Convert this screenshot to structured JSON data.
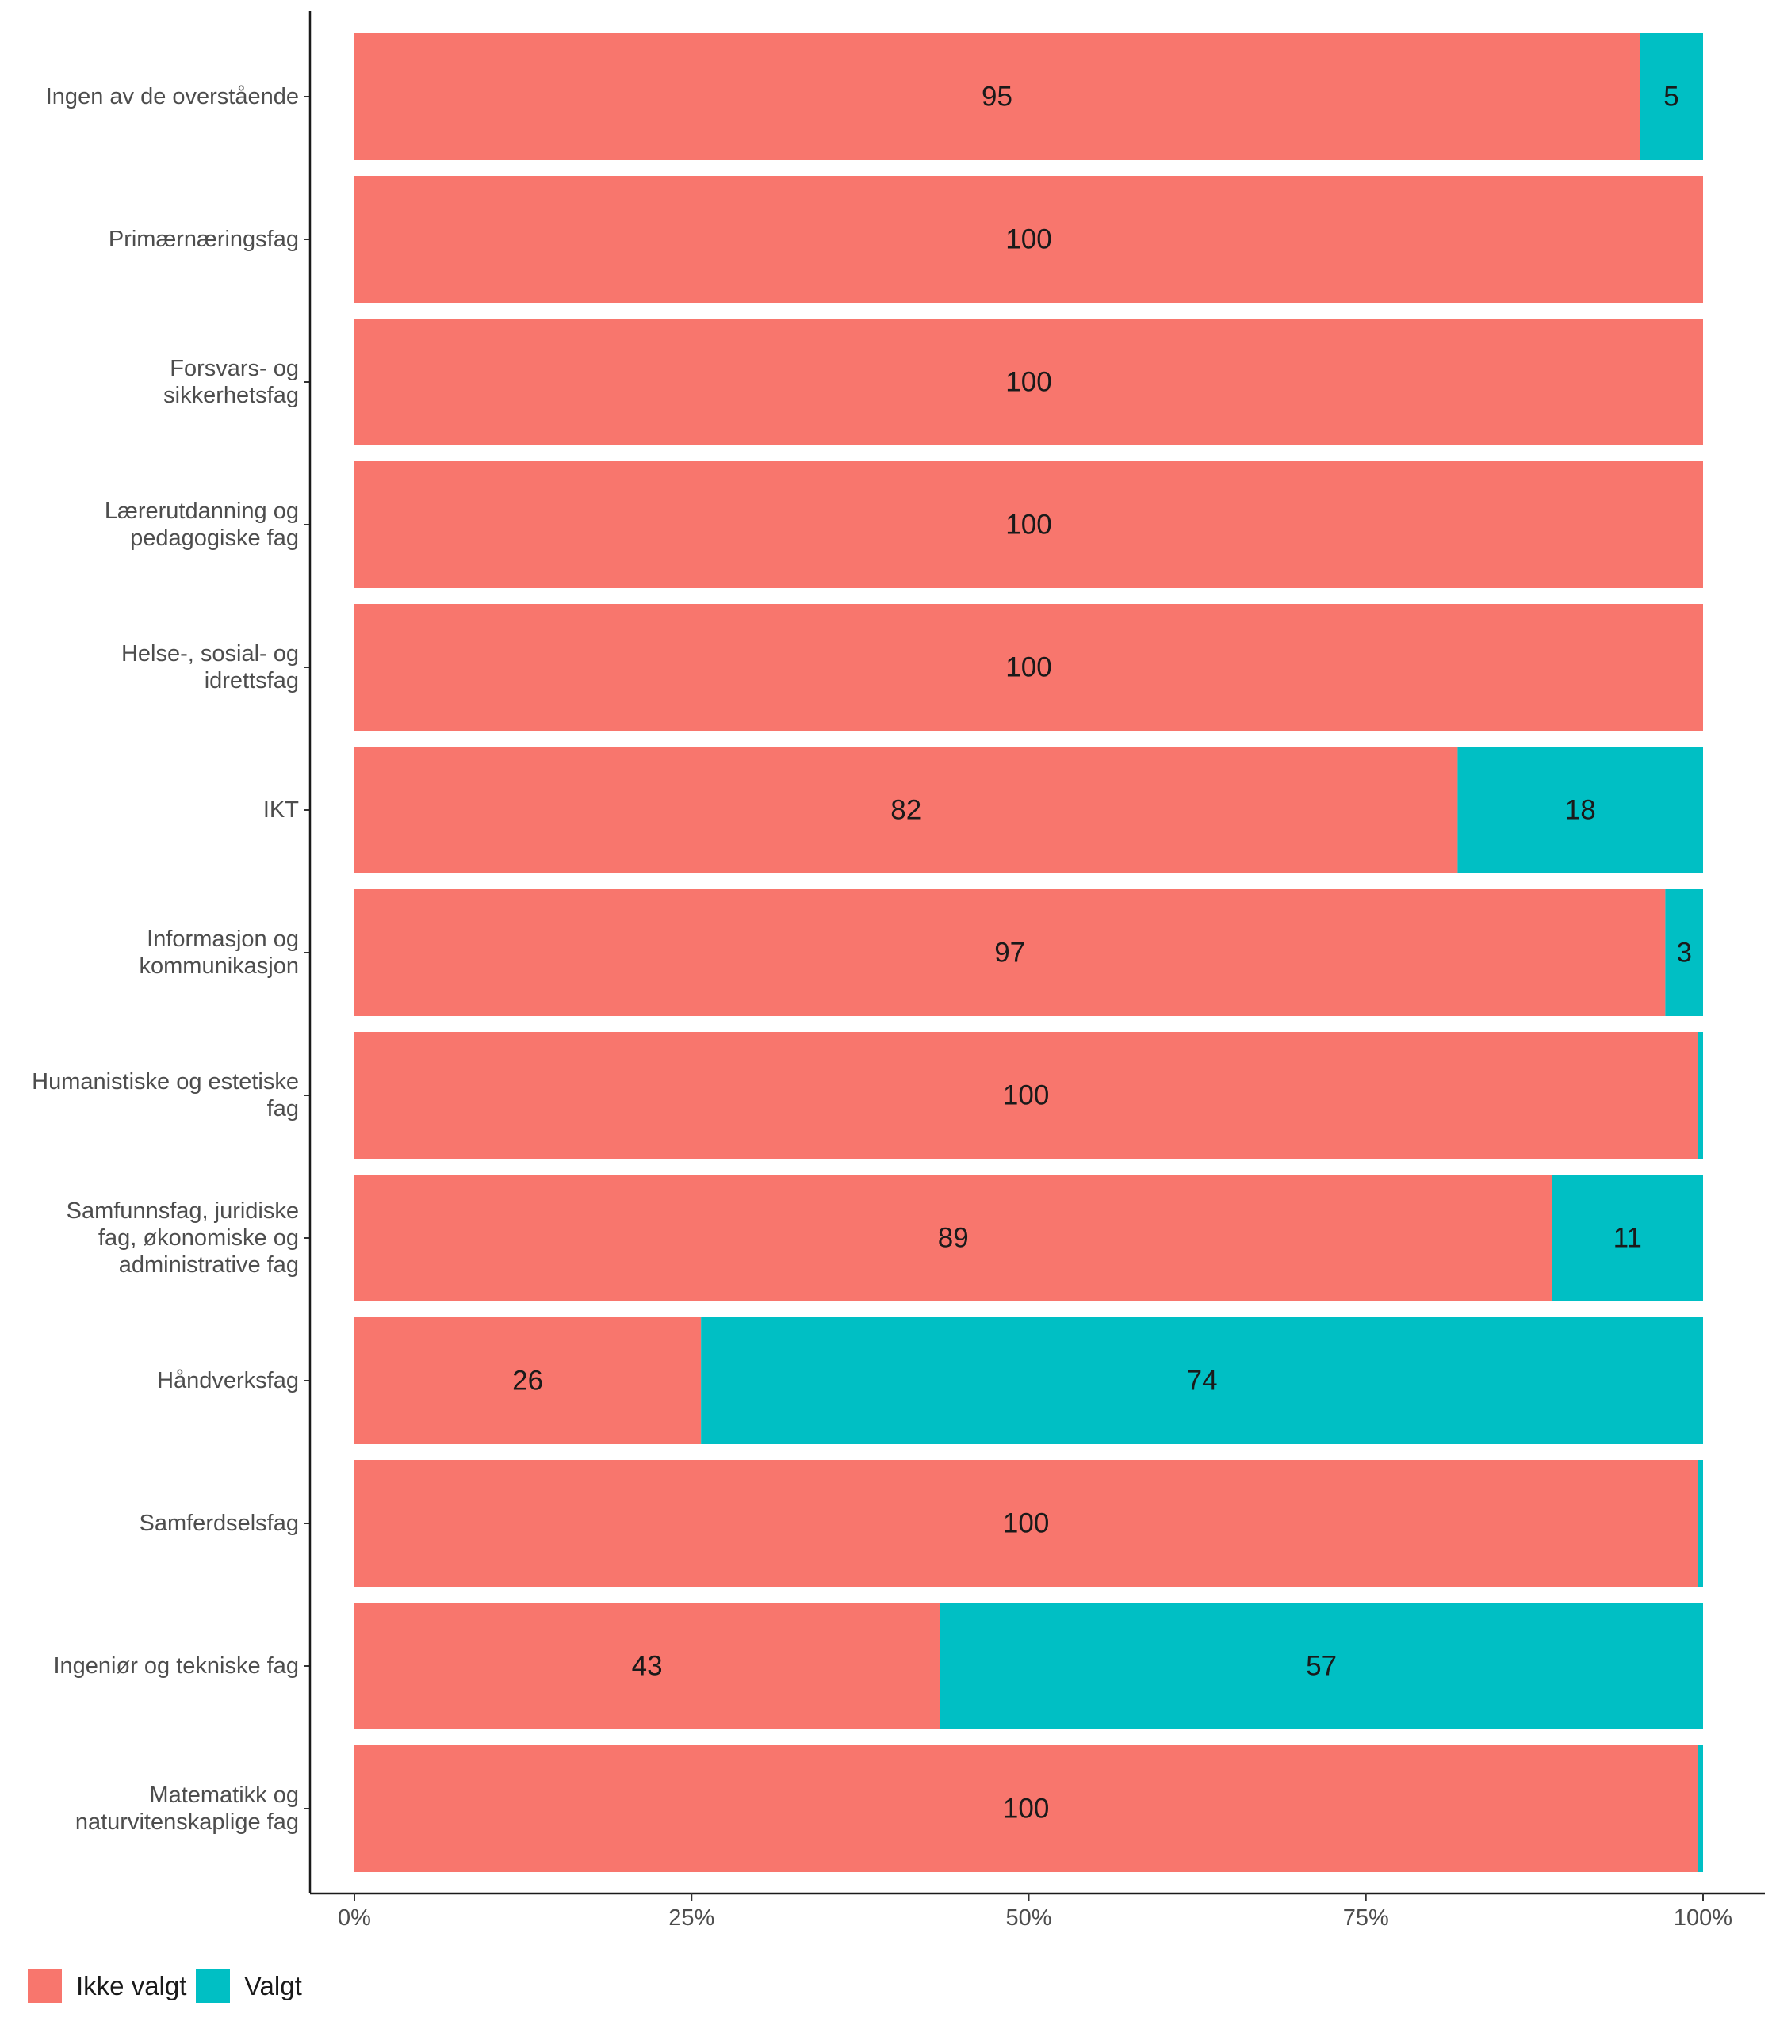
{
  "chart_data": {
    "type": "bar",
    "orientation": "horizontal",
    "stacked": true,
    "categories": [
      "Ingen av de overstående",
      "Primærnæringsfag",
      "Forsvars- og sikkerhetsfag",
      "Lærerutdanning og pedagogiske fag",
      "Helse-, sosial- og idrettsfag",
      "IKT",
      "Informasjon og kommunikasjon",
      "Humanistiske og estetiske fag",
      "Samfunnsfag, juridiske fag, økonomiske og administrative fag",
      "Håndverksfag",
      "Samferdselsfag",
      "Ingeniør og tekniske fag",
      "Matematikk og naturvitenskaplige fag"
    ],
    "category_label_lines": [
      [
        "Ingen av de overstående"
      ],
      [
        "Primærnæringsfag"
      ],
      [
        "Forsvars- og",
        "sikkerhetsfag"
      ],
      [
        "Lærerutdanning og",
        "pedagogiske fag"
      ],
      [
        "Helse-, sosial- og",
        "idrettsfag"
      ],
      [
        "IKT"
      ],
      [
        "Informasjon og",
        "kommunikasjon"
      ],
      [
        "Humanistiske og estetiske",
        "fag"
      ],
      [
        "Samfunnsfag, juridiske",
        "fag, økonomiske og",
        "administrative fag"
      ],
      [
        "Håndverksfag"
      ],
      [
        "Samferdselsfag"
      ],
      [
        "Ingeniør og tekniske fag"
      ],
      [
        "Matematikk og",
        "naturvitenskaplige fag"
      ]
    ],
    "series": [
      {
        "name": "Ikke valgt",
        "color": "#F8766D",
        "values": [
          95.3,
          100,
          100,
          100,
          100,
          81.8,
          97.2,
          99.6,
          88.8,
          25.7,
          99.6,
          43.4,
          99.6
        ],
        "labels": [
          "95",
          "100",
          "100",
          "100",
          "100",
          "82",
          "97",
          "100",
          "89",
          "26",
          "100",
          "43",
          "100"
        ]
      },
      {
        "name": "Valgt",
        "color": "#00BFC4",
        "values": [
          4.7,
          0,
          0,
          0,
          0,
          18.2,
          2.8,
          0.4,
          11.2,
          74.3,
          0.4,
          56.6,
          0.4
        ],
        "labels": [
          "5",
          "",
          "",
          "",
          "",
          "18",
          "3",
          "",
          "11",
          "74",
          "",
          "57",
          ""
        ]
      }
    ],
    "x_ticks": [
      "0%",
      "25%",
      "50%",
      "75%",
      "100%"
    ],
    "x_tick_values": [
      0,
      25,
      50,
      75,
      100
    ],
    "xlim": [
      0,
      100
    ],
    "xlabel": "",
    "ylabel": "",
    "grid": false,
    "legend_position": "bottom-left"
  }
}
